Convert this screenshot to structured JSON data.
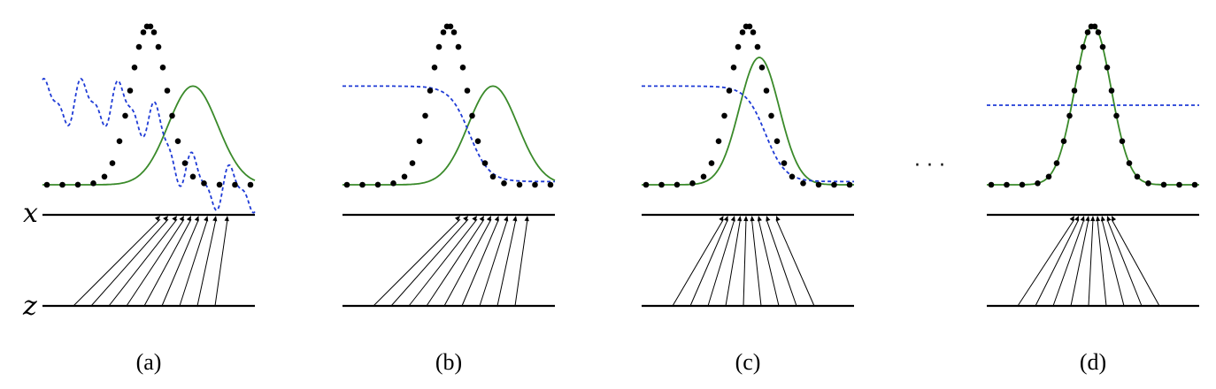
{
  "figure": {
    "x_axis_label": "x",
    "z_axis_label": "z",
    "ellipsis": "· · ·",
    "panels": [
      {
        "id": "a",
        "caption": "(a)",
        "data_mean": 0.0,
        "model_mean": 1.0,
        "model_sigma": 0.56,
        "model_peak": 0.62,
        "discriminator": "oscillating",
        "mapping_targets": [
          0.26,
          0.44,
          0.64,
          0.8,
          0.96,
          1.13,
          1.33,
          1.52,
          1.78
        ]
      },
      {
        "id": "b",
        "caption": "(b)",
        "data_mean": 0.0,
        "model_mean": 1.0,
        "model_sigma": 0.56,
        "model_peak": 0.62,
        "discriminator": "sigmoid",
        "disc_high": 0.62,
        "disc_low": 0.02,
        "disc_center": 0.47,
        "mapping_targets": [
          0.26,
          0.44,
          0.64,
          0.8,
          0.96,
          1.13,
          1.33,
          1.52,
          1.78
        ]
      },
      {
        "id": "c",
        "caption": "(c)",
        "data_mean": 0.0,
        "model_mean": 0.26,
        "model_sigma": 0.45,
        "model_peak": 0.8,
        "discriminator": "sigmoid",
        "disc_high": 0.62,
        "disc_low": 0.02,
        "disc_center": 0.4,
        "mapping_targets": [
          -0.55,
          -0.45,
          -0.3,
          -0.17,
          -0.04,
          0.09,
          0.24,
          0.42,
          0.64
        ]
      },
      {
        "id": "d",
        "caption": "(d)",
        "data_mean": 0.0,
        "model_mean": 0.0,
        "model_sigma": 0.41,
        "model_peak": 1.0,
        "discriminator": "constant",
        "disc_level": 0.5,
        "mapping_targets": [
          -0.42,
          -0.32,
          -0.2,
          -0.1,
          0.0,
          0.1,
          0.2,
          0.32,
          0.42
        ]
      }
    ],
    "data_dots_x": [
      -2.3,
      -1.95,
      -1.6,
      -1.25,
      -1.0,
      -0.82,
      -0.66,
      -0.53,
      -0.42,
      -0.32,
      -0.22,
      -0.12,
      -0.04,
      0.04,
      0.12,
      0.22,
      0.32,
      0.42,
      0.53,
      0.66,
      0.82,
      1.0,
      1.25,
      1.6,
      1.95,
      2.3
    ],
    "z_starts": [
      -1.7,
      -1.3,
      -0.9,
      -0.5,
      -0.1,
      0.3,
      0.7,
      1.1,
      1.5
    ],
    "colors": {
      "data": "#000000",
      "model": "#3a8a2a",
      "discriminator": "#1f3bd6",
      "axis": "#000000"
    }
  }
}
